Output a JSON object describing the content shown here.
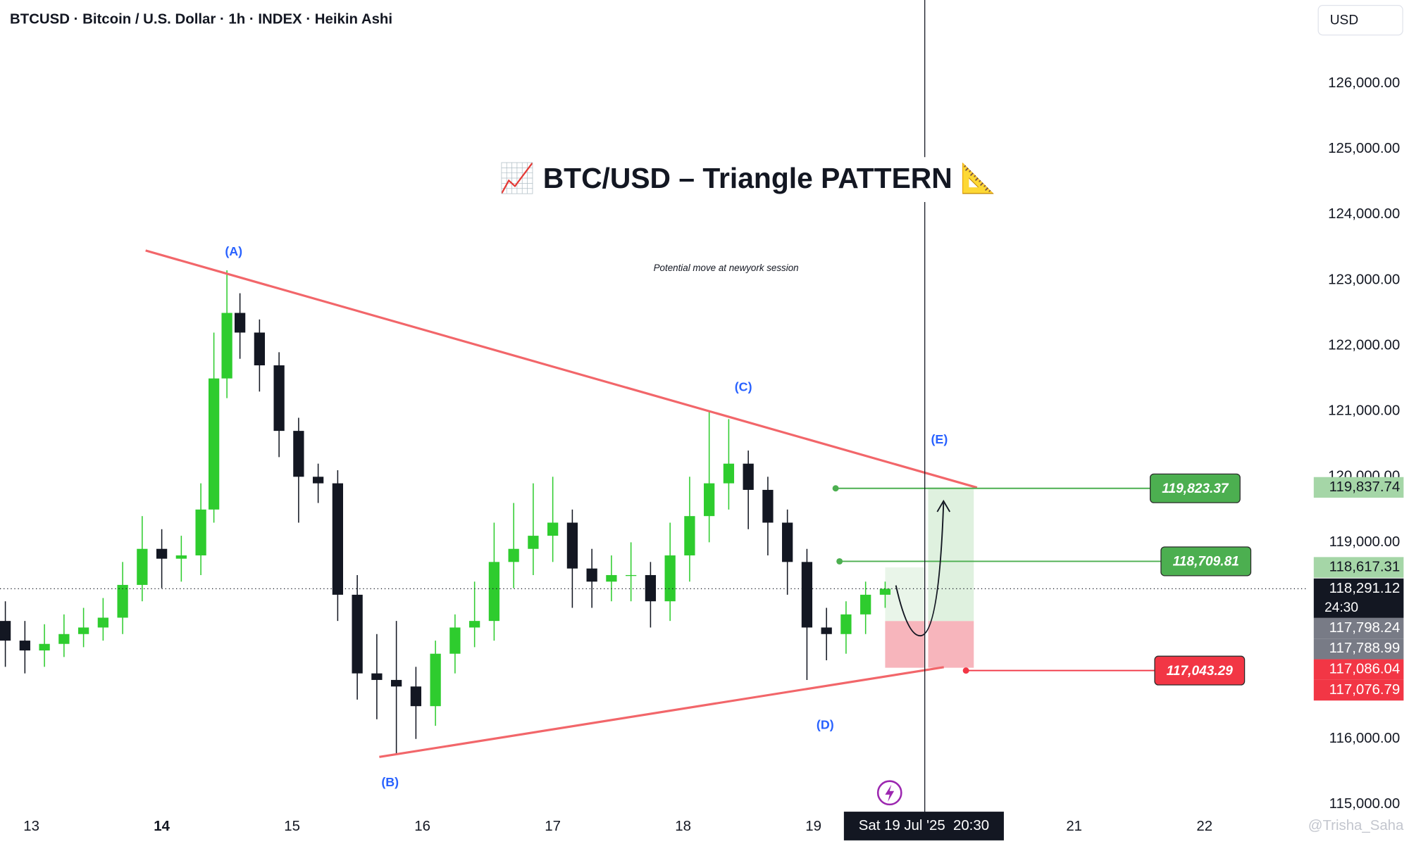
{
  "chart_data": {
    "type": "candlestick",
    "header": "BTCUSD · Bitcoin / U.S. Dollar · 1h · INDEX · Heikin Ashi",
    "currency": "USD",
    "title": "📈 BTC/USD –  Triangle  PATTERN 📐",
    "note": "Potential move at newyork session",
    "watermark": "@Trisha_Saha",
    "up_color": "#2ecc2e",
    "down_color": "#131722",
    "xlim": [
      12.759,
      22.79
    ],
    "ylim": [
      114808,
      127274
    ],
    "xticks": [
      13,
      14,
      15,
      16,
      17,
      18,
      19,
      21,
      22
    ],
    "yticks": [
      {
        "value": 115000,
        "label": "115,000.00"
      },
      {
        "value": 116000,
        "label": "116,000.00"
      },
      {
        "value": 119000,
        "label": "119,000.00"
      },
      {
        "value": 120000,
        "label": "120,000.00"
      },
      {
        "value": 121000,
        "label": "121,000.00"
      },
      {
        "value": 122000,
        "label": "122,000.00"
      },
      {
        "value": 123000,
        "label": "123,000.00"
      },
      {
        "value": 124000,
        "label": "124,000.00"
      },
      {
        "value": 125000,
        "label": "125,000.00"
      },
      {
        "value": 126000,
        "label": "126,000.00"
      }
    ],
    "x": [
      12.8,
      12.95,
      13.1,
      13.25,
      13.4,
      13.55,
      13.7,
      13.85,
      14.0,
      14.15,
      14.3,
      14.4,
      14.5,
      14.6,
      14.75,
      14.9,
      15.05,
      15.2,
      15.35,
      15.5,
      15.65,
      15.8,
      15.95,
      16.1,
      16.25,
      16.4,
      16.55,
      16.7,
      16.85,
      17.0,
      17.15,
      17.3,
      17.45,
      17.6,
      17.75,
      17.9,
      18.05,
      18.2,
      18.35,
      18.5,
      18.65,
      18.8,
      18.95,
      19.1,
      19.25,
      19.4,
      19.55
    ],
    "open": [
      117800,
      117500,
      117350,
      117450,
      117600,
      117700,
      117850,
      118350,
      118900,
      118750,
      118800,
      119500,
      121500,
      122500,
      122200,
      121700,
      120700,
      120000,
      119900,
      118200,
      117000,
      116900,
      116800,
      116500,
      117300,
      117700,
      117800,
      118700,
      118900,
      119100,
      119300,
      118600,
      118400,
      118500,
      118500,
      118100,
      118800,
      119400,
      119900,
      120200,
      119800,
      119300,
      118700,
      117700,
      117600,
      117900,
      118200
    ],
    "high": [
      118100,
      117800,
      117750,
      117900,
      118000,
      118150,
      118700,
      119400,
      119200,
      119100,
      119900,
      122200,
      123150,
      122800,
      122400,
      121900,
      120900,
      120200,
      120100,
      118500,
      117600,
      117800,
      117100,
      117500,
      117900,
      118400,
      119300,
      119600,
      119900,
      120000,
      119500,
      118900,
      118800,
      119000,
      118700,
      119300,
      120000,
      121000,
      120880,
      120400,
      120000,
      119500,
      118900,
      118000,
      118100,
      118400,
      118400
    ],
    "low": [
      117100,
      117000,
      117100,
      117250,
      117400,
      117500,
      117600,
      118100,
      118300,
      118400,
      118500,
      119300,
      121200,
      121800,
      121300,
      120300,
      119300,
      119600,
      117800,
      116600,
      116300,
      115770,
      116000,
      116200,
      117000,
      117400,
      117500,
      118300,
      118500,
      118700,
      118000,
      118000,
      118100,
      118100,
      117700,
      117800,
      118400,
      119000,
      119500,
      119200,
      118800,
      118200,
      116900,
      117200,
      117300,
      117600,
      118000
    ],
    "close": [
      117500,
      117350,
      117450,
      117600,
      117700,
      117850,
      118350,
      118900,
      118750,
      118800,
      119500,
      121500,
      122500,
      122200,
      121700,
      120700,
      120000,
      119900,
      118200,
      117000,
      116900,
      116800,
      116500,
      117300,
      117700,
      117800,
      118700,
      118900,
      119100,
      119300,
      118600,
      118400,
      118500,
      118500,
      118100,
      118800,
      119400,
      119900,
      120200,
      119800,
      119300,
      118700,
      117700,
      117600,
      117900,
      118200,
      118291.12
    ],
    "trendlines": [
      {
        "x": [
          13.876,
          20.255
        ],
        "y": [
          123452,
          119835
        ],
        "color": "#f2666a"
      },
      {
        "x": [
          15.669,
          20.0
        ],
        "y": [
          115725,
          117095
        ],
        "color": "#f2666a"
      }
    ],
    "wave_labels": [
      {
        "label": "(A)",
        "x": 14.552,
        "y": 123424
      },
      {
        "label": "(B)",
        "x": 15.752,
        "y": 115328
      },
      {
        "label": "(C)",
        "x": 18.462,
        "y": 121356
      },
      {
        "label": "(D)",
        "x": 19.09,
        "y": 116204
      },
      {
        "label": "(E)",
        "x": 19.966,
        "y": 120561
      }
    ],
    "levels": [
      {
        "value": 119823.37,
        "label": "119,823.37",
        "start": 19.17,
        "color": "#4caf50"
      },
      {
        "value": 118709.81,
        "label": "118,709.81",
        "start": 19.2,
        "color": "#4caf50"
      },
      {
        "value": 117043.29,
        "label": "117,043.29",
        "start": 20.17,
        "color": "#f23645"
      }
    ],
    "zones": [
      {
        "x": [
          19.88,
          20.23
        ],
        "top": 119837.74,
        "bottom": 117798.24,
        "color": "#d7eed7"
      },
      {
        "x": [
          19.88,
          20.23
        ],
        "top": 117798.24,
        "bottom": 117086.04,
        "color": "#f5a3ab"
      },
      {
        "x": [
          19.55,
          19.85
        ],
        "top": 118617.31,
        "bottom": 117798.24,
        "color": "#e3f3e3"
      },
      {
        "x": [
          19.55,
          19.85
        ],
        "top": 117798.24,
        "bottom": 117086.04,
        "color": "#f5a3ab"
      }
    ],
    "crosshair": {
      "x": 19.854,
      "label": "Sat 19 Jul '25  20:30"
    },
    "last_price": {
      "value": 118291.12,
      "label": "118,291.12",
      "countdown": "24:30"
    },
    "axis_badges": [
      {
        "value": 119837.74,
        "label": "119,837.74",
        "color": "#a5d6a7"
      },
      {
        "value": 118617.31,
        "label": "118,617.31",
        "color": "#a5d6a7"
      },
      {
        "value": 117798.24,
        "label": "117,798.24",
        "color": "#787b86"
      },
      {
        "value": 117788.99,
        "label": "117,788.99",
        "color": "#787b86"
      },
      {
        "value": 117086.04,
        "label": "117,086.04",
        "color": "#f23645"
      },
      {
        "value": 117076.79,
        "label": "117,076.79",
        "color": "#f23645"
      }
    ]
  }
}
